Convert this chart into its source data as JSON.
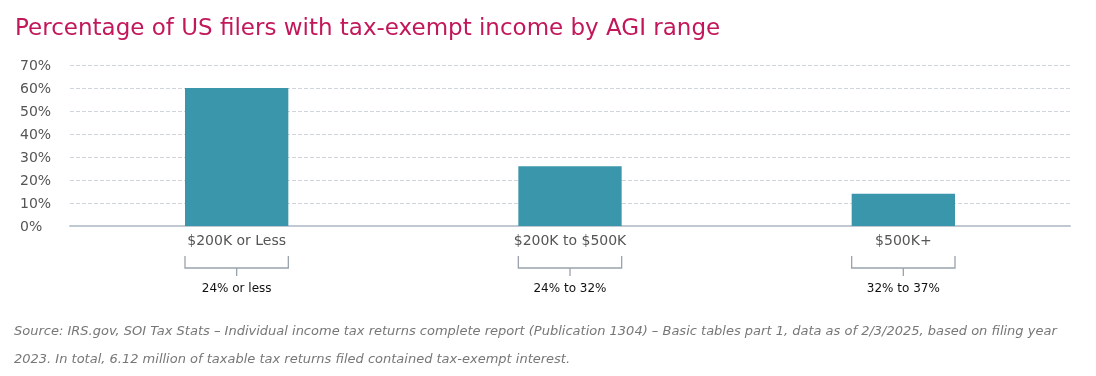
{
  "chart_data": {
    "type": "bar",
    "title": "Percentage of US filers with tax-exempt income by AGI range",
    "categories": [
      "$200K or Less",
      "$200K to $500K",
      "$500K+"
    ],
    "values": [
      60,
      26,
      14
    ],
    "color": "#3a97ab",
    "ylim": [
      0,
      70
    ],
    "yticks": [
      {
        "value": 0,
        "label": "0%"
      },
      {
        "value": 10,
        "label": "10%"
      },
      {
        "value": 20,
        "label": "20%"
      },
      {
        "value": 30,
        "label": "30%"
      },
      {
        "value": 40,
        "label": "40%"
      },
      {
        "value": 50,
        "label": "50%"
      },
      {
        "value": 60,
        "label": "60%"
      },
      {
        "value": 70,
        "label": "70%"
      }
    ],
    "grid": "y",
    "annotations": [
      {
        "text": "24% or less",
        "x": "$200K or Less"
      },
      {
        "text": "24% to 32%",
        "x": "$200K to $500K"
      },
      {
        "text": "32% to 37%",
        "x": "$500K+"
      },
      "Source: IRS.gov, SOI Tax Stats – Individual income tax returns complete report (Publication 1304) – Basic tables part 1, data as of 2/3/2025, based on filing year 2023. In total, 6.12 million of taxable tax returns filed contained tax-exempt interest."
    ]
  }
}
